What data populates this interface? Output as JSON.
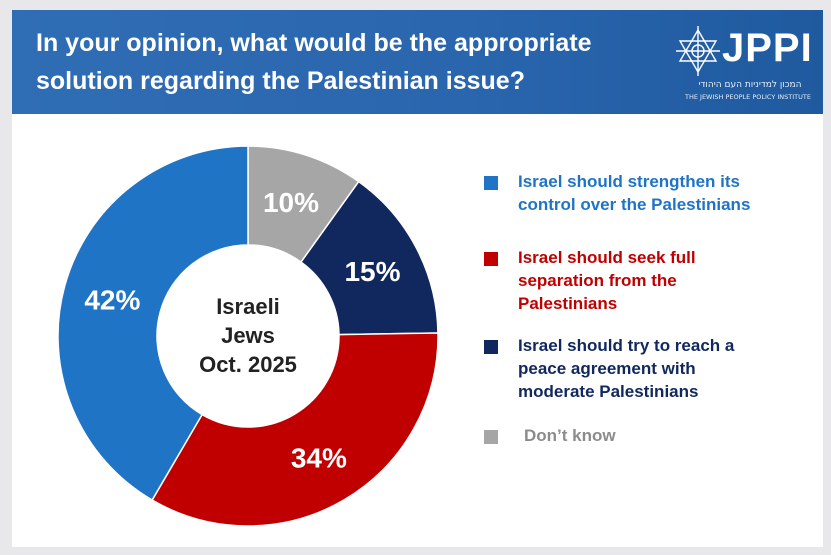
{
  "header": {
    "title": "In your opinion, what would be the appropriate solution regarding the Palestinian issue?",
    "logo_text": "JPPI",
    "logo_hebrew": "המכון למדיניות העם היהודי",
    "logo_english": "THE JEWISH PEOPLE POLICY INSTITUTE"
  },
  "colors": {
    "header_bg": "#2c69b0",
    "blue": "#1f74c6",
    "red": "#c00000",
    "navy": "#10285e",
    "gray": "#a6a6a6"
  },
  "chart_data": {
    "type": "pie",
    "donut": true,
    "center_label": [
      "Israeli",
      "Jews",
      "Oct. 2025"
    ],
    "slices": [
      {
        "label": "Don’t know",
        "value": 10,
        "display": "10%",
        "color": "#a6a6a6"
      },
      {
        "label": "Israel should try to reach a peace agreement with moderate Palestinians",
        "value": 15,
        "display": "15%",
        "color": "#10285e"
      },
      {
        "label": "Israel should seek full separation from the Palestinians",
        "value": 34,
        "display": "34%",
        "color": "#c00000"
      },
      {
        "label": "Israel should strengthen its control over the Palestinians",
        "value": 42,
        "display": "42%",
        "color": "#1f74c6"
      }
    ],
    "legend_placement": "right"
  },
  "legend": [
    {
      "lines": [
        "Israel should strengthen its",
        "control over the Palestinians"
      ],
      "color": "#1f74c6"
    },
    {
      "lines": [
        "Israel should seek full",
        "separation from the",
        "Palestinians"
      ],
      "color": "#c00000"
    },
    {
      "lines": [
        "Israel should try to reach a",
        "peace agreement with",
        "moderate Palestinians"
      ],
      "color": "#10285e"
    },
    {
      "lines": [
        "Don’t know"
      ],
      "color": "#a6a6a6"
    }
  ]
}
